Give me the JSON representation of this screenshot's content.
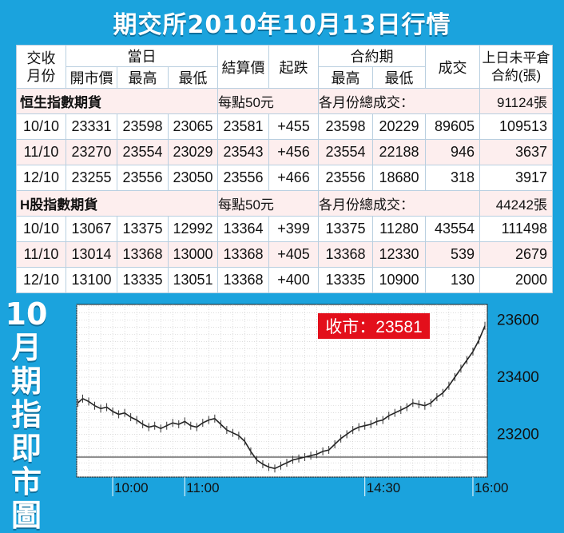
{
  "title": "期交所2010年10月13日行情",
  "table": {
    "headers": {
      "month": "交收\n月份",
      "day_group": "當日",
      "open": "開市價",
      "high": "最高",
      "low": "最低",
      "settle": "結算價",
      "change": "起跌",
      "contract_group": "合約期",
      "c_high": "最高",
      "c_low": "最低",
      "volume": "成交",
      "oi": "上日未平倉\n合約(張)"
    },
    "sections": [
      {
        "name": "恒生指數期貨",
        "per_point": "每點50元",
        "total_label": "各月份總成交：",
        "total": "91124張",
        "rows": [
          {
            "month": "10/10",
            "open": "23331",
            "high": "23598",
            "low": "23065",
            "settle": "23581",
            "change": "+455",
            "c_high": "23598",
            "c_low": "20229",
            "volume": "89605",
            "oi": "109513"
          },
          {
            "month": "11/10",
            "open": "23270",
            "high": "23554",
            "low": "23029",
            "settle": "23543",
            "change": "+456",
            "c_high": "23554",
            "c_low": "22188",
            "volume": "946",
            "oi": "3637"
          },
          {
            "month": "12/10",
            "open": "23255",
            "high": "23556",
            "low": "23050",
            "settle": "23556",
            "change": "+466",
            "c_high": "23556",
            "c_low": "18680",
            "volume": "318",
            "oi": "3917"
          }
        ]
      },
      {
        "name": "H股指數期貨",
        "per_point": "每點50元",
        "total_label": "各月份總成交：",
        "total": "44242張",
        "rows": [
          {
            "month": "10/10",
            "open": "13067",
            "high": "13375",
            "low": "12992",
            "settle": "13364",
            "change": "+399",
            "c_high": "13375",
            "c_low": "11280",
            "volume": "43554",
            "oi": "111498"
          },
          {
            "month": "11/10",
            "open": "13014",
            "high": "13368",
            "low": "13000",
            "settle": "13368",
            "change": "+405",
            "c_high": "13368",
            "c_low": "12330",
            "volume": "539",
            "oi": "2679"
          },
          {
            "month": "12/10",
            "open": "13100",
            "high": "13335",
            "low": "13051",
            "settle": "13368",
            "change": "+400",
            "c_high": "13335",
            "c_low": "10900",
            "volume": "130",
            "oi": "2000"
          }
        ]
      }
    ]
  },
  "chart_title": "10月期指即市圖",
  "close_label": "收市：23581",
  "chart_data": {
    "type": "line",
    "title": "10月期指即市圖",
    "annotation": "收市：23581",
    "x_ticks": [
      "10:00",
      "11:00",
      "14:30",
      "16:00"
    ],
    "x_tick_min": [
      15,
      75,
      225,
      315
    ],
    "xlim": [
      -15,
      327
    ],
    "ylim": [
      23050,
      23655
    ],
    "y_ticks": [
      23200,
      23400,
      23600
    ],
    "reference_line": 23120,
    "series": [
      {
        "x": [
          -14,
          -10,
          -5,
          0,
          5,
          10,
          15,
          20,
          25,
          30,
          35,
          40,
          45,
          50,
          55,
          60,
          65,
          70,
          75,
          80,
          85,
          90,
          95,
          100,
          105,
          110,
          115,
          120,
          125,
          130,
          135,
          140,
          145,
          150,
          155,
          160,
          165,
          170,
          175,
          180,
          185,
          190,
          195,
          200,
          205,
          210,
          215,
          220,
          225,
          230,
          235,
          240,
          245,
          250,
          255,
          260,
          265,
          270,
          275,
          280,
          285,
          290,
          295,
          300,
          305,
          310,
          315,
          320,
          325
        ],
        "y": [
          23310,
          23325,
          23315,
          23300,
          23290,
          23295,
          23280,
          23270,
          23275,
          23260,
          23250,
          23235,
          23225,
          23230,
          23220,
          23230,
          23240,
          23235,
          23245,
          23230,
          23225,
          23240,
          23250,
          23255,
          23235,
          23215,
          23205,
          23195,
          23175,
          23140,
          23110,
          23095,
          23085,
          23080,
          23090,
          23100,
          23110,
          23115,
          23120,
          23125,
          23130,
          23140,
          23145,
          23165,
          23185,
          23200,
          23215,
          23225,
          23230,
          23235,
          23245,
          23250,
          23265,
          23275,
          23285,
          23295,
          23310,
          23305,
          23300,
          23310,
          23330,
          23345,
          23370,
          23400,
          23430,
          23460,
          23490,
          23530,
          23580
        ]
      }
    ]
  }
}
